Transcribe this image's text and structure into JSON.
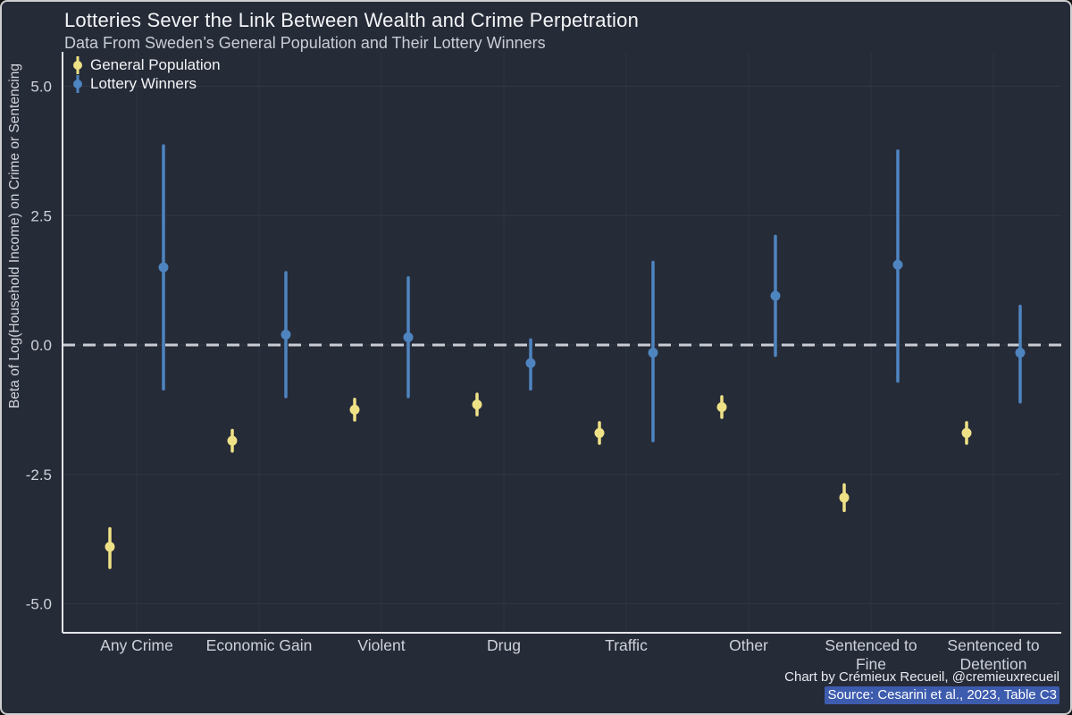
{
  "title": "Lotteries Sever the Link Between Wealth and Crime Perpetration",
  "subtitle": "Data From Sweden’s General Population and Their Lottery Winners",
  "caption_line1": "Chart by Crémieux Recueil, @cremieuxrecueil",
  "caption_line2": "Source: Cesarini et al., 2023, Table C3",
  "colors": {
    "background": "#262b38",
    "axis": "#e4e6ea",
    "tick_text": "#ced2d9",
    "grid": "rgba(255,255,255,0.06)",
    "grid_vertical": "rgba(255,255,255,0.04)",
    "zero_line": "#c9ccd3",
    "caption_highlight": "#3d5cae",
    "general_population": "#efe186",
    "lottery_winners": "#4e84bf"
  },
  "chart_data": {
    "type": "scatter",
    "subtype": "pointrange",
    "title": "Lotteries Sever the Link Between Wealth and Crime Perpetration",
    "subtitle": "Data From Sweden’s General Population and Their Lottery Winners",
    "ylabel": "Beta of Log(Household Income) on Crime or Sentencing",
    "xlabel": "",
    "ylim": [
      -5.6,
      5.6
    ],
    "yticks": [
      5.0,
      2.5,
      0.0,
      -2.5,
      -5.0
    ],
    "ytick_labels": [
      "5.0",
      "2.5",
      "0.0",
      "-2.5",
      "-5.0"
    ],
    "zero_line": true,
    "grid": true,
    "legend_position": "top-left",
    "categories": [
      "Any Crime",
      "Economic Gain",
      "Violent",
      "Drug",
      "Traffic",
      "Other",
      "Sentenced to Fine",
      "Sentenced to Detention"
    ],
    "series": [
      {
        "name": "General Population",
        "color": "#efe186",
        "values": [
          -3.9,
          -1.85,
          -1.25,
          -1.15,
          -1.7,
          -1.2,
          -2.95,
          -1.7
        ],
        "ci_low": [
          -4.3,
          -2.05,
          -1.45,
          -1.35,
          -1.9,
          -1.4,
          -3.2,
          -1.9
        ],
        "ci_high": [
          -3.55,
          -1.65,
          -1.05,
          -0.95,
          -1.5,
          -1.0,
          -2.7,
          -1.5
        ]
      },
      {
        "name": "Lottery Winners",
        "color": "#4e84bf",
        "values": [
          1.5,
          0.2,
          0.15,
          -0.35,
          -0.15,
          0.95,
          1.55,
          -0.15
        ],
        "ci_low": [
          -0.85,
          -1.0,
          -1.0,
          -0.85,
          -1.85,
          -0.2,
          -0.7,
          -1.1
        ],
        "ci_high": [
          3.85,
          1.4,
          1.3,
          0.1,
          1.6,
          2.1,
          3.75,
          0.75
        ]
      }
    ]
  }
}
